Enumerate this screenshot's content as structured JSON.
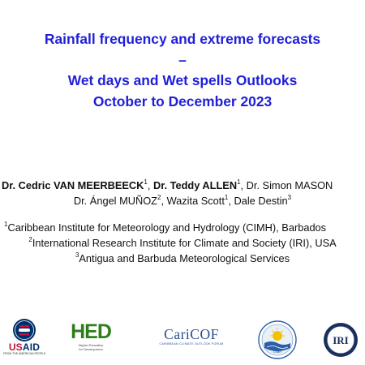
{
  "slide": {
    "title_lines": [
      "Rainfall frequency and extreme forecasts",
      "–",
      "Wet days and Wet spells Outlooks",
      "October to December 2023"
    ],
    "authors": {
      "a1_name": "Dr. Cedric VAN MEERBEECK",
      "a1_sup": "1",
      "sep1": ", ",
      "a2_name": "Dr. Teddy ALLEN",
      "a2_sup": "1",
      "sep2": ", Dr. Simon MASON",
      "a4_name": "Dr. Ángel MUÑOZ",
      "a4_sup": "2",
      "a5_name": ", Wazita Scott",
      "a5_sup": "1",
      "a6_name": ", Dale Destin",
      "a6_sup": "3"
    },
    "affiliations": [
      {
        "num": "1",
        "text": "Caribbean Institute for Meteorology and Hydrology (CIMH), Barbados"
      },
      {
        "num": "2",
        "text": "International Research Institute for Climate and Society (IRI), USA"
      },
      {
        "num": "3",
        "text": "Antigua and Barbuda Meteorological Services"
      }
    ],
    "logos": {
      "usaid": {
        "name_us": "US",
        "name_aid": "AID",
        "tagline": "FROM THE AMERICAN PEOPLE"
      },
      "hed": {
        "mark": "HED",
        "tagline_1": "Higher Education",
        "tagline_2": "for Development"
      },
      "caricof": {
        "name": "CariCOF",
        "tagline": "CARIBBEAN CLIMATE OUTLOOK FORUM"
      },
      "cimh": {
        "label": "CIMH"
      },
      "iri": {
        "label": "IRI"
      }
    },
    "colors": {
      "title": "#1f1fd9",
      "body_text": "#111111",
      "usaid_blue": "#002f6c",
      "usaid_red": "#c2113a",
      "hed_green": "#2f7d1b",
      "caricof_blue": "#2a4d8f",
      "iri_navy": "#1a2f5c"
    }
  }
}
